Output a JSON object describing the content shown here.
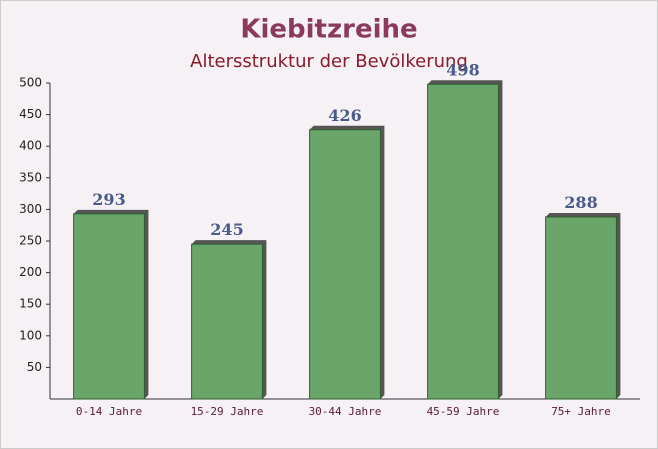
{
  "chart_data": {
    "type": "bar",
    "title": "Kiebitzreihe",
    "subtitle": "Altersstruktur der Bevölkerung",
    "categories": [
      "0-14 Jahre",
      "15-29 Jahre",
      "30-44 Jahre",
      "45-59 Jahre",
      "75+ Jahre"
    ],
    "values": [
      293,
      245,
      426,
      498,
      288
    ],
    "color": "#6aa56a",
    "ylim": [
      0,
      500
    ],
    "yticks": [
      50,
      100,
      150,
      200,
      250,
      300,
      350,
      400,
      450,
      500
    ],
    "grid": false
  }
}
